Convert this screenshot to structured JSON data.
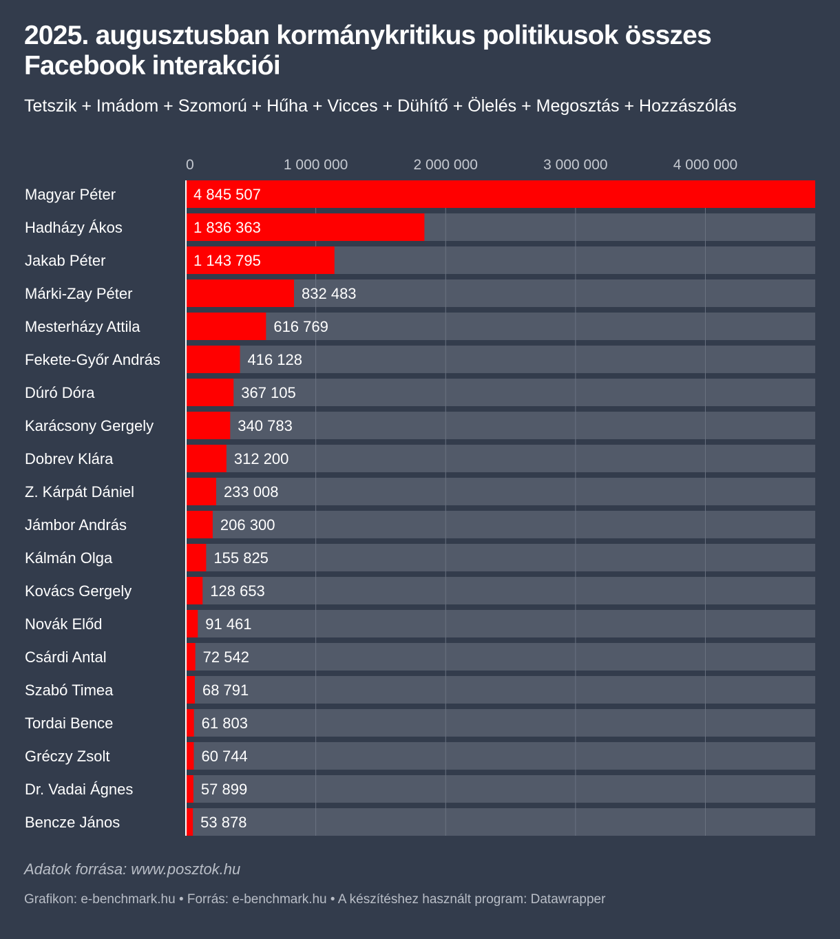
{
  "header": {
    "title": "2025. augusztusban kormánykritikus politikusok összes Facebook interakciói",
    "subtitle": "Tetszik + Imádom + Szomorú + Hűha + Vicces + Dühítő + Ölelés + Megosztás + Hozzászólás"
  },
  "footer": {
    "source_note": "Adatok forrása: www.posztok.hu",
    "credits": "Grafikon: e-benchmark.hu • Forrás: e-benchmark.hu • A készítéshez használt program: Datawrapper"
  },
  "colors": {
    "background": "#333c4c",
    "bar": "#ff0000",
    "track": "#525a69",
    "gridline": "#6a7281",
    "tick_text": "#c5c9d0",
    "text": "#ffffff"
  },
  "chart_data": {
    "type": "bar",
    "orientation": "horizontal",
    "xlim": [
      0,
      4845507
    ],
    "x_ticks": [
      0,
      1000000,
      2000000,
      3000000,
      4000000
    ],
    "x_tick_labels": [
      "0",
      "1 000 000",
      "2 000 000",
      "3 000 000",
      "4 000 000"
    ],
    "grid": true,
    "categories": [
      "Magyar Péter",
      "Hadházy Ákos",
      "Jakab Péter",
      "Márki-Zay Péter",
      "Mesterházy Attila",
      "Fekete-Győr András",
      "Dúró Dóra",
      "Karácsony Gergely",
      "Dobrev Klára",
      "Z. Kárpát Dániel",
      "Jámbor András",
      "Kálmán Olga",
      "Kovács Gergely",
      "Novák Előd",
      "Csárdi Antal",
      "Szabó Timea",
      "Tordai Bence",
      "Gréczy Zsolt",
      "Dr. Vadai Ágnes",
      "Bencze János"
    ],
    "values": [
      4845507,
      1836363,
      1143795,
      832483,
      616769,
      416128,
      367105,
      340783,
      312200,
      233008,
      206300,
      155825,
      128653,
      91461,
      72542,
      68791,
      61803,
      60744,
      57899,
      53878
    ],
    "value_labels": [
      "4 845 507",
      "1 836 363",
      "1 143 795",
      "832 483",
      "616 769",
      "416 128",
      "367 105",
      "340 783",
      "312 200",
      "233 008",
      "206 300",
      "155 825",
      "128 653",
      "91 461",
      "72 542",
      "68 791",
      "61 803",
      "60 744",
      "57 899",
      "53 878"
    ]
  }
}
